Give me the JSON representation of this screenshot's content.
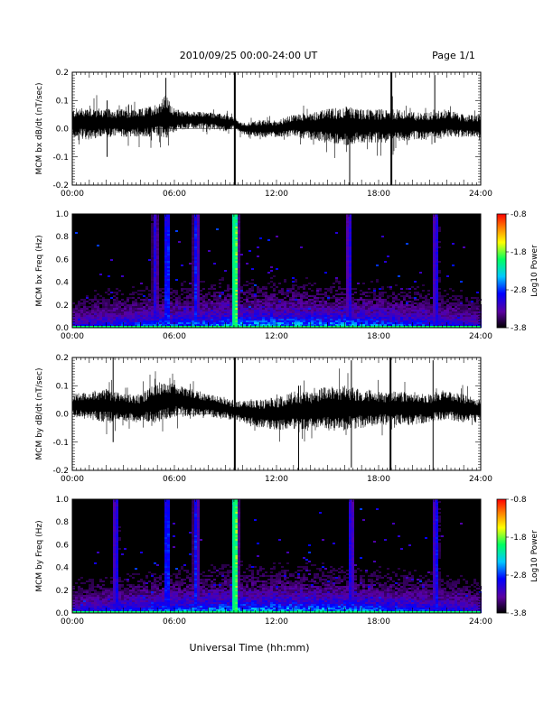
{
  "header": {
    "title": "2010/09/25  00:00-24:00 UT",
    "page": "Page 1/1"
  },
  "xlabel": "Universal Time (hh:mm)",
  "x_ticks": [
    "00:00",
    "06:00",
    "12:00",
    "18:00",
    "24:00"
  ],
  "colorbar": {
    "label": "Log10 Power",
    "ticks": [
      "-0.8",
      "-1.8",
      "-2.8",
      "-3.8"
    ],
    "range": [
      -3.8,
      -0.8
    ],
    "colors": [
      "#000000",
      "#5a00a0",
      "#0000ff",
      "#00c8ff",
      "#00ff60",
      "#ffff00",
      "#ff8000",
      "#ff0000"
    ]
  },
  "chart_data": [
    {
      "type": "line",
      "ylabel": "MCM bx dB/dt (nT/sec)",
      "xlim": [
        0,
        24
      ],
      "ylim": [
        -0.2,
        0.2
      ],
      "y_ticks": [
        "0.2",
        "0.1",
        "0.0",
        "-0.1",
        "-0.2"
      ],
      "envelope": {
        "hours": [
          0,
          1,
          2,
          3,
          4,
          5,
          5.5,
          6,
          7,
          8,
          9,
          9.5,
          10,
          11,
          12,
          13,
          14,
          15,
          16,
          17,
          18,
          19,
          20,
          21,
          22,
          23,
          24
        ],
        "center": [
          0.02,
          0.02,
          0.02,
          0.02,
          0.02,
          0.03,
          0.04,
          0.03,
          0.03,
          0.03,
          0.02,
          0.02,
          0.0,
          0.0,
          0.0,
          0.01,
          0.01,
          0.01,
          0.01,
          0.01,
          0.01,
          0.01,
          0.01,
          0.01,
          0.02,
          0.01,
          0.01
        ],
        "amplitude": [
          0.05,
          0.06,
          0.05,
          0.05,
          0.05,
          0.06,
          0.08,
          0.04,
          0.03,
          0.03,
          0.03,
          0.02,
          0.02,
          0.03,
          0.03,
          0.04,
          0.05,
          0.06,
          0.07,
          0.06,
          0.06,
          0.06,
          0.05,
          0.05,
          0.05,
          0.04,
          0.04
        ]
      },
      "spikes": [
        {
          "hour": 9.55,
          "min": -0.21,
          "max": 0.21
        },
        {
          "hour": 2.05,
          "min": -0.1,
          "max": 0.1
        },
        {
          "hour": 5.5,
          "min": -0.02,
          "max": 0.18
        },
        {
          "hour": 16.3,
          "min": -0.2,
          "max": 0.05
        },
        {
          "hour": 18.75,
          "min": -0.2,
          "max": 0.2
        },
        {
          "hour": 21.3,
          "min": -0.05,
          "max": 0.19
        }
      ]
    },
    {
      "type": "heatmap",
      "ylabel": "MCM bx Freq (Hz)",
      "xlim": [
        0,
        24
      ],
      "ylim": [
        0,
        1.0
      ],
      "y_ticks": [
        "1.0",
        "0.8",
        "0.6",
        "0.4",
        "0.2",
        "0.0"
      ],
      "value_scale": "Log10 Power",
      "zlim": [
        -3.8,
        -0.8
      ],
      "hot_bands": [
        {
          "hour": 9.5,
          "level": -1.0
        },
        {
          "hour": 5.5,
          "level": -2.3
        },
        {
          "hour": 7.2,
          "level": -2.6
        },
        {
          "hour": 4.8,
          "level": -2.9
        },
        {
          "hour": 16.2,
          "level": -2.8
        },
        {
          "hour": 21.3,
          "level": -2.7
        }
      ]
    },
    {
      "type": "line",
      "ylabel": "MCM by dB/dt (nT/sec)",
      "xlim": [
        0,
        24
      ],
      "ylim": [
        -0.2,
        0.2
      ],
      "y_ticks": [
        "0.2",
        "0.1",
        "0.0",
        "-0.1",
        "-0.2"
      ],
      "envelope": {
        "hours": [
          0,
          1,
          2,
          3,
          4,
          5,
          6,
          7,
          8,
          9,
          9.5,
          10,
          11,
          12,
          13,
          14,
          15,
          16,
          17,
          18,
          19,
          20,
          21,
          22,
          23,
          24
        ],
        "center": [
          0.03,
          0.03,
          0.03,
          0.02,
          0.02,
          0.04,
          0.05,
          0.04,
          0.03,
          0.02,
          0.01,
          0.01,
          0.0,
          0.0,
          0.01,
          0.01,
          0.02,
          0.02,
          0.02,
          0.02,
          0.02,
          0.02,
          0.02,
          0.03,
          0.02,
          0.01
        ],
        "amplitude": [
          0.04,
          0.05,
          0.06,
          0.05,
          0.05,
          0.07,
          0.06,
          0.05,
          0.04,
          0.04,
          0.03,
          0.04,
          0.05,
          0.06,
          0.07,
          0.07,
          0.08,
          0.08,
          0.07,
          0.06,
          0.06,
          0.06,
          0.05,
          0.05,
          0.05,
          0.04
        ]
      },
      "spikes": [
        {
          "hour": 9.55,
          "min": -0.21,
          "max": 0.21
        },
        {
          "hour": 2.4,
          "min": -0.1,
          "max": 0.2
        },
        {
          "hour": 13.3,
          "min": -0.2,
          "max": 0.1
        },
        {
          "hour": 16.4,
          "min": -0.19,
          "max": 0.19
        },
        {
          "hour": 18.7,
          "min": -0.2,
          "max": 0.2
        },
        {
          "hour": 21.2,
          "min": -0.2,
          "max": 0.19
        }
      ]
    },
    {
      "type": "heatmap",
      "ylabel": "MCM by Freq (Hz)",
      "xlim": [
        0,
        24
      ],
      "ylim": [
        0,
        1.0
      ],
      "y_ticks": [
        "1.0",
        "0.8",
        "0.6",
        "0.4",
        "0.2",
        "0.0"
      ],
      "value_scale": "Log10 Power",
      "zlim": [
        -3.8,
        -0.8
      ],
      "hot_bands": [
        {
          "hour": 9.5,
          "level": -1.0
        },
        {
          "hour": 5.5,
          "level": -2.3
        },
        {
          "hour": 7.2,
          "level": -2.6
        },
        {
          "hour": 2.5,
          "level": -2.7
        },
        {
          "hour": 16.3,
          "level": -2.7
        },
        {
          "hour": 21.3,
          "level": -2.6
        }
      ]
    }
  ]
}
